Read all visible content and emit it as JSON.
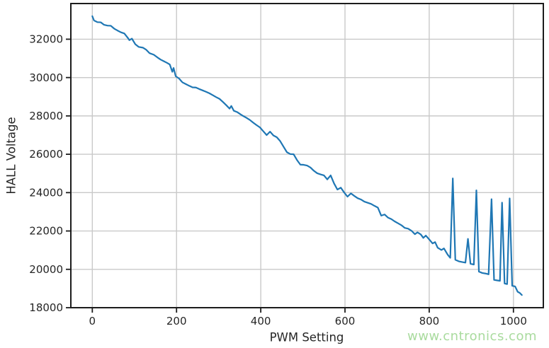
{
  "chart_data": {
    "type": "line",
    "title": "",
    "xlabel": "PWM Setting",
    "ylabel": "HALL Voltage",
    "xlim": [
      -51,
      1071
    ],
    "ylim": [
      18000,
      33860
    ],
    "xticks": [
      0,
      200,
      400,
      600,
      800,
      1000
    ],
    "yticks": [
      18000,
      20000,
      22000,
      24000,
      26000,
      28000,
      30000,
      32000
    ],
    "grid": true,
    "legend": "none",
    "colors": {
      "line": "#1f77b4",
      "grid": "#c9c9c9",
      "spine": "#1c1c1c",
      "tick_label": "#262626",
      "watermark": "#a9db9e",
      "background": "#ffffff"
    },
    "series": [
      {
        "name": "HALL Voltage vs PWM",
        "x": [
          0,
          4,
          12,
          20,
          28,
          36,
          44,
          52,
          60,
          68,
          76,
          84,
          88,
          94,
          102,
          110,
          120,
          128,
          136,
          146,
          154,
          162,
          170,
          178,
          184,
          190,
          193,
          198,
          206,
          214,
          222,
          230,
          238,
          246,
          254,
          262,
          270,
          278,
          286,
          294,
          302,
          310,
          318,
          326,
          330,
          336,
          344,
          352,
          358,
          366,
          374,
          382,
          390,
          398,
          406,
          414,
          422,
          430,
          438,
          446,
          454,
          462,
          470,
          478,
          486,
          494,
          502,
          510,
          518,
          526,
          534,
          542,
          550,
          558,
          566,
          574,
          582,
          590,
          598,
          606,
          614,
          622,
          630,
          638,
          646,
          654,
          662,
          670,
          678,
          686,
          694,
          702,
          710,
          718,
          726,
          734,
          742,
          750,
          758,
          766,
          772,
          780,
          786,
          792,
          800,
          808,
          814,
          820,
          829,
          835,
          844,
          850,
          856,
          862,
          870,
          878,
          886,
          892,
          898,
          906,
          912,
          918,
          926,
          934,
          941,
          948,
          954,
          962,
          968,
          973,
          979,
          985,
          991,
          997,
          1004,
          1010,
          1015,
          1020
        ],
        "y": [
          33200,
          32980,
          32890,
          32880,
          32750,
          32710,
          32700,
          32550,
          32450,
          32360,
          32300,
          32080,
          31950,
          32030,
          31740,
          31600,
          31560,
          31450,
          31270,
          31190,
          31060,
          30940,
          30850,
          30760,
          30680,
          30300,
          30500,
          30070,
          29950,
          29750,
          29660,
          29570,
          29490,
          29480,
          29400,
          29330,
          29260,
          29180,
          29080,
          28980,
          28890,
          28730,
          28560,
          28380,
          28520,
          28270,
          28200,
          28080,
          28000,
          27900,
          27790,
          27650,
          27520,
          27400,
          27200,
          27000,
          27180,
          26980,
          26890,
          26690,
          26400,
          26110,
          26010,
          26000,
          25700,
          25460,
          25450,
          25410,
          25310,
          25140,
          25010,
          24950,
          24900,
          24690,
          24900,
          24480,
          24160,
          24260,
          24010,
          23790,
          23960,
          23830,
          23710,
          23640,
          23530,
          23470,
          23410,
          23310,
          23220,
          22800,
          22860,
          22700,
          22620,
          22500,
          22400,
          22300,
          22160,
          22120,
          22010,
          21830,
          21930,
          21820,
          21640,
          21760,
          21560,
          21350,
          21420,
          21130,
          21010,
          21090,
          20760,
          20600,
          24740,
          20500,
          20420,
          20380,
          20350,
          21590,
          20290,
          20250,
          24120,
          19880,
          19810,
          19780,
          19740,
          23660,
          19450,
          19420,
          19400,
          23480,
          19260,
          19230,
          23700,
          19140,
          19110,
          18830,
          18770,
          18660
        ]
      }
    ],
    "watermark": {
      "text": "www.cntronics.com",
      "color": "#a9db9e"
    }
  }
}
